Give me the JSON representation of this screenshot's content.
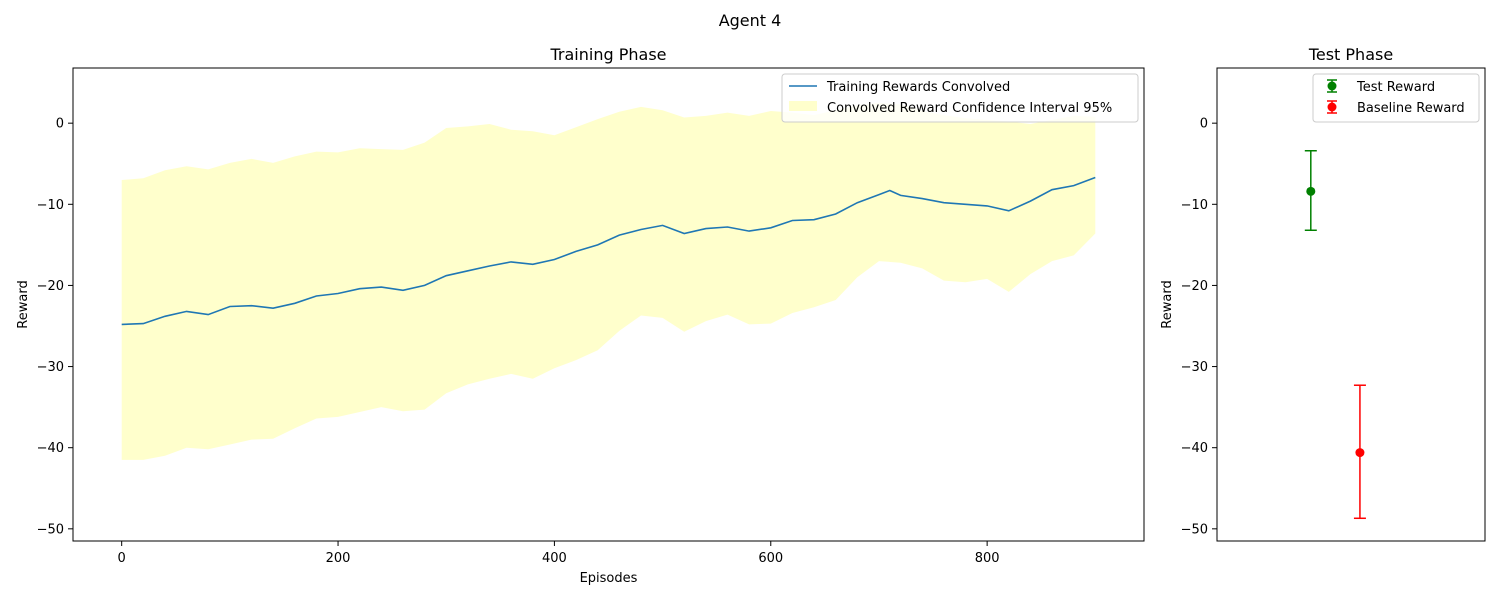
{
  "figure": {
    "suptitle": "Agent 4"
  },
  "chart_data": [
    {
      "type": "line",
      "title": "Training Phase",
      "xlabel": "Episodes",
      "ylabel": "Reward",
      "xlim": [
        -45,
        945
      ],
      "ylim": [
        -51.5,
        6.8
      ],
      "xticks": [
        0,
        200,
        400,
        600,
        800
      ],
      "yticks": [
        0,
        -10,
        -20,
        -30,
        -40,
        -50
      ],
      "grid": false,
      "legend_position": "top-right",
      "series": [
        {
          "name": "Training Rewards Convolved",
          "color": "#1f77b4",
          "x": [
            0,
            20,
            40,
            60,
            80,
            100,
            120,
            140,
            160,
            180,
            200,
            220,
            240,
            260,
            280,
            300,
            320,
            340,
            360,
            380,
            400,
            420,
            440,
            460,
            480,
            500,
            520,
            540,
            560,
            580,
            600,
            620,
            640,
            660,
            680,
            700,
            710,
            720,
            740,
            760,
            780,
            800,
            820,
            840,
            860,
            880,
            900
          ],
          "y": [
            -24.8,
            -24.7,
            -23.8,
            -23.2,
            -23.6,
            -22.6,
            -22.5,
            -22.8,
            -22.2,
            -21.3,
            -21.0,
            -20.4,
            -20.2,
            -20.6,
            -20.0,
            -18.8,
            -18.2,
            -17.6,
            -17.1,
            -17.4,
            -16.8,
            -15.8,
            -15.0,
            -13.8,
            -13.1,
            -12.6,
            -13.6,
            -13.0,
            -12.8,
            -13.3,
            -12.9,
            -12.0,
            -11.9,
            -11.2,
            -9.8,
            -8.8,
            -8.3,
            -8.9,
            -9.3,
            -9.8,
            -10.0,
            -10.2,
            -10.8,
            -9.6,
            -8.2,
            -7.7,
            -6.7
          ]
        },
        {
          "name": "Convolved Reward Confidence Interval 95%",
          "type": "area",
          "color": "#ffffcc",
          "x": [
            0,
            20,
            40,
            60,
            80,
            100,
            120,
            140,
            160,
            180,
            200,
            220,
            240,
            260,
            280,
            300,
            320,
            340,
            360,
            380,
            400,
            420,
            440,
            460,
            480,
            500,
            520,
            540,
            560,
            580,
            600,
            620,
            640,
            660,
            680,
            700,
            720,
            740,
            760,
            780,
            800,
            820,
            840,
            860,
            880,
            900
          ],
          "upper": [
            -7.0,
            -6.8,
            -5.8,
            -5.3,
            -5.7,
            -4.9,
            -4.4,
            -4.9,
            -4.1,
            -3.5,
            -3.6,
            -3.1,
            -3.2,
            -3.3,
            -2.4,
            -0.6,
            -0.4,
            -0.1,
            -0.8,
            -1.0,
            -1.5,
            -0.5,
            0.5,
            1.4,
            2.0,
            1.6,
            0.7,
            0.9,
            1.3,
            0.9,
            1.5,
            1.3,
            1.0,
            1.6,
            2.2,
            2.5,
            2.3,
            1.5,
            1.0,
            0.6,
            0.4,
            0.2,
            -0.1,
            0.4,
            0.9,
            0.8
          ],
          "lower": [
            -41.5,
            -41.5,
            -41.0,
            -40.0,
            -40.2,
            -39.6,
            -39.0,
            -38.9,
            -37.6,
            -36.4,
            -36.2,
            -35.6,
            -35.0,
            -35.5,
            -35.3,
            -33.3,
            -32.2,
            -31.5,
            -30.9,
            -31.5,
            -30.2,
            -29.2,
            -28.0,
            -25.6,
            -23.7,
            -24.0,
            -25.7,
            -24.4,
            -23.6,
            -24.8,
            -24.7,
            -23.4,
            -22.7,
            -21.8,
            -19.0,
            -17.0,
            -17.2,
            -17.9,
            -19.4,
            -19.6,
            -19.2,
            -20.8,
            -18.6,
            -17.0,
            -16.3,
            -13.6
          ]
        }
      ]
    },
    {
      "type": "scatter",
      "title": "Test Phase",
      "xlabel": "",
      "ylabel": "Reward",
      "xlim": [
        -0.5,
        2.5
      ],
      "ylim": [
        -51.5,
        6.8
      ],
      "yticks": [
        0,
        -10,
        -20,
        -30,
        -40,
        -50
      ],
      "grid": false,
      "legend_position": "top-right",
      "series": [
        {
          "name": "Test Reward",
          "color": "#008000",
          "x": 0.55,
          "y": -8.4,
          "yerr_low": -13.2,
          "yerr_high": -3.4
        },
        {
          "name": "Baseline Reward",
          "color": "#ff0000",
          "x": 1.1,
          "y": -40.6,
          "yerr_low": -48.7,
          "yerr_high": -32.3
        }
      ]
    }
  ]
}
